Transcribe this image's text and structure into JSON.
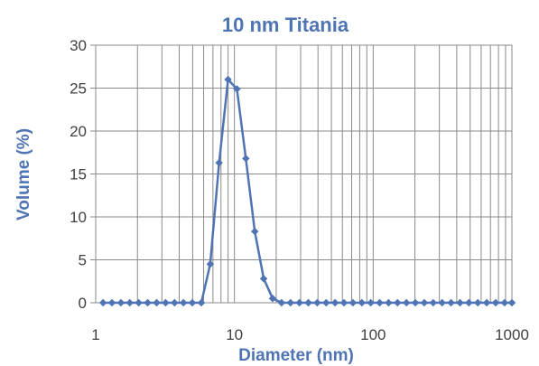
{
  "chart_data": {
    "type": "line",
    "title": "10 nm Titania",
    "xlabel": "Diameter (nm)",
    "ylabel": "Volume (%)",
    "xscale": "log",
    "xlim": [
      1,
      1000
    ],
    "ylim": [
      0,
      30
    ],
    "yticks": [
      "0",
      "5",
      "10",
      "15",
      "20",
      "25",
      "30"
    ],
    "xticks": [
      {
        "value": 1,
        "label": "1"
      },
      {
        "value": 10,
        "label": "10"
      },
      {
        "value": 100,
        "label": "100"
      },
      {
        "value": 1000,
        "label": "1000"
      }
    ],
    "grid": true,
    "legend": "none",
    "color": "#4f74b3",
    "series": [
      {
        "x": [
          1.13,
          1.31,
          1.52,
          1.76,
          2.04,
          2.37,
          2.75,
          3.19,
          3.7,
          4.29,
          4.97,
          5.77,
          6.69,
          7.75,
          8.99,
          10.42,
          12.09,
          14.02,
          16.25,
          18.85,
          21.86,
          25.35,
          29.39,
          34.08,
          39.52,
          45.82,
          53.14,
          61.62,
          71.45,
          82.85,
          96.07,
          111.4,
          129.2,
          149.8,
          173.7,
          201.4,
          233.5,
          270.8,
          314.0,
          364.1,
          422.2,
          489.6,
          567.7,
          658.3,
          763.4,
          885.2,
          1000
        ],
        "y": [
          0,
          0,
          0,
          0,
          0,
          0,
          0,
          0,
          0,
          0,
          0,
          0,
          4.5,
          16.3,
          26.0,
          24.9,
          16.8,
          8.3,
          2.8,
          0.5,
          0,
          0,
          0,
          0,
          0,
          0,
          0,
          0,
          0,
          0,
          0,
          0,
          0,
          0,
          0,
          0,
          0,
          0,
          0,
          0,
          0,
          0,
          0,
          0,
          0,
          0,
          0
        ]
      }
    ]
  }
}
